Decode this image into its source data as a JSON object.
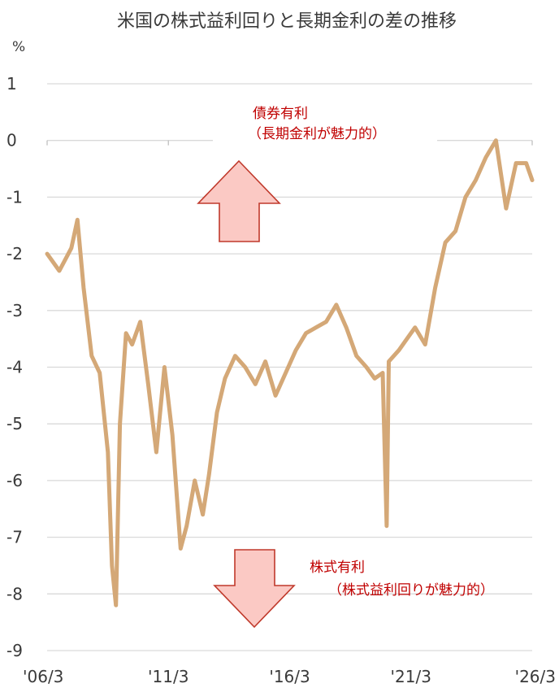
{
  "chart_data": {
    "type": "line",
    "title": "米国の株式益利回りと長期金利の差の推移",
    "ylabel": "%",
    "xlabel": "",
    "ylim": [
      -9,
      1
    ],
    "yticks": [
      "1",
      "0",
      "-1",
      "-2",
      "-3",
      "-4",
      "-5",
      "-6",
      "-7",
      "-8",
      "-9"
    ],
    "xticks": [
      "'06/3",
      "'11/3",
      "'16/3",
      "'21/3",
      "'26/3"
    ],
    "grid": true,
    "legend": "none",
    "series": [
      {
        "color": "#d4a877",
        "x": [
          "2006-03",
          "2006-09",
          "2007-03",
          "2007-06",
          "2007-09",
          "2008-01",
          "2008-05",
          "2008-09",
          "2008-11",
          "2009-01",
          "2009-03",
          "2009-06",
          "2009-09",
          "2010-01",
          "2010-05",
          "2010-09",
          "2011-01",
          "2011-05",
          "2011-09",
          "2011-12",
          "2012-04",
          "2012-08",
          "2012-11",
          "2013-03",
          "2013-07",
          "2013-12",
          "2014-05",
          "2014-10",
          "2015-03",
          "2015-08",
          "2016-01",
          "2016-06",
          "2016-11",
          "2017-04",
          "2017-09",
          "2018-02",
          "2018-07",
          "2018-12",
          "2019-05",
          "2019-09",
          "2020-01",
          "2020-03",
          "2020-04",
          "2020-09",
          "2021-01",
          "2021-05",
          "2021-10",
          "2022-03",
          "2022-08",
          "2023-01",
          "2023-06",
          "2023-11",
          "2024-04",
          "2024-09",
          "2025-02",
          "2025-07",
          "2025-12",
          "2026-03"
        ],
        "values": [
          -2.0,
          -2.3,
          -1.9,
          -1.4,
          -2.6,
          -3.8,
          -4.1,
          -5.5,
          -7.5,
          -8.2,
          -5.0,
          -3.4,
          -3.6,
          -3.2,
          -4.3,
          -5.5,
          -4.0,
          -5.2,
          -7.2,
          -6.8,
          -6.0,
          -6.6,
          -5.9,
          -4.8,
          -4.2,
          -3.8,
          -4.0,
          -4.3,
          -3.9,
          -4.5,
          -4.1,
          -3.7,
          -3.4,
          -3.3,
          -3.2,
          -2.9,
          -3.3,
          -3.8,
          -4.0,
          -4.2,
          -4.1,
          -6.8,
          -3.9,
          -3.7,
          -3.5,
          -3.3,
          -3.6,
          -2.6,
          -1.8,
          -1.6,
          -1.0,
          -0.7,
          -0.3,
          0.0,
          -1.2,
          -0.4,
          -0.4,
          -0.7
        ]
      }
    ],
    "annotations": [
      {
        "line1": "債券有利",
        "line2": "（長期金利が魅力的）",
        "arrow": "up"
      },
      {
        "line1": "株式有利",
        "line2": "（株式益利回りが魅力的）",
        "arrow": "down"
      }
    ]
  }
}
